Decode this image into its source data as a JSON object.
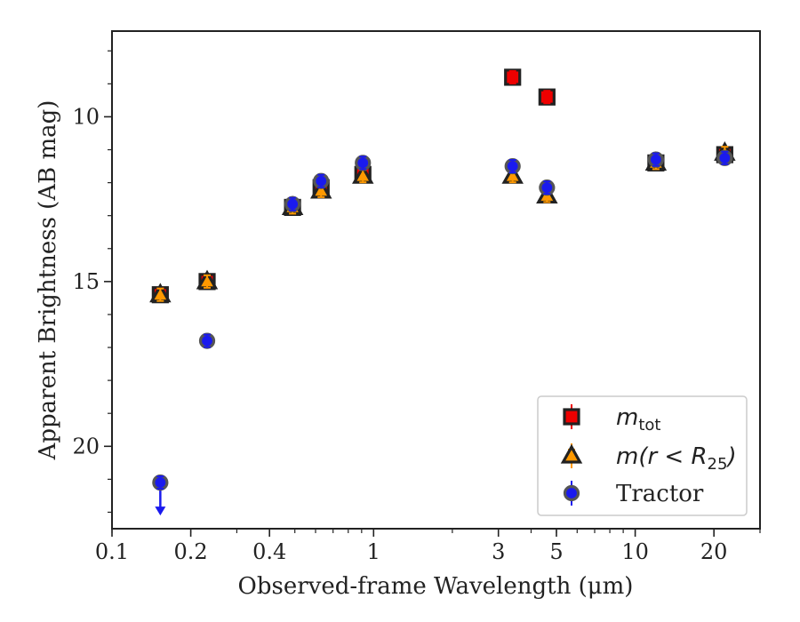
{
  "chart_data": {
    "type": "scatter",
    "title": "",
    "xlabel": "Observed-frame Wavelength (μm)",
    "ylabel": "Apparent Brightness (AB mag)",
    "xscale": "log",
    "xlim": [
      0.1,
      30
    ],
    "ylim": [
      22.5,
      7.4
    ],
    "y_inverted": true,
    "xticks": [
      {
        "value": 0.1,
        "label": "0.1"
      },
      {
        "value": 0.2,
        "label": "0.2"
      },
      {
        "value": 0.4,
        "label": "0.4"
      },
      {
        "value": 1,
        "label": "1"
      },
      {
        "value": 3,
        "label": "3"
      },
      {
        "value": 5,
        "label": "5"
      },
      {
        "value": 10,
        "label": "10"
      },
      {
        "value": 20,
        "label": "20"
      }
    ],
    "yticks": [
      {
        "value": 10,
        "label": "10"
      },
      {
        "value": 15,
        "label": "15"
      },
      {
        "value": 20,
        "label": "20"
      }
    ],
    "grid": false,
    "legend_position": "lower-right",
    "series": [
      {
        "name": "m_tot",
        "marker": "square",
        "color": "#ee0000",
        "edgecolor": "#222222",
        "points": [
          {
            "x": 0.153,
            "y": 15.4
          },
          {
            "x": 0.231,
            "y": 15.0
          },
          {
            "x": 0.49,
            "y": 12.75
          },
          {
            "x": 0.63,
            "y": 12.15
          },
          {
            "x": 0.91,
            "y": 11.75
          },
          {
            "x": 3.4,
            "y": 8.8
          },
          {
            "x": 4.6,
            "y": 9.4
          },
          {
            "x": 12.0,
            "y": 11.4
          },
          {
            "x": 22.0,
            "y": 11.15
          }
        ]
      },
      {
        "name": "m(r < R25)",
        "marker": "triangle",
        "color": "#ff9900",
        "edgecolor": "#222222",
        "points": [
          {
            "x": 0.153,
            "y": 15.4
          },
          {
            "x": 0.231,
            "y": 15.0
          },
          {
            "x": 0.49,
            "y": 12.75
          },
          {
            "x": 0.63,
            "y": 12.25
          },
          {
            "x": 0.91,
            "y": 11.8
          },
          {
            "x": 3.4,
            "y": 11.8
          },
          {
            "x": 4.6,
            "y": 12.4
          },
          {
            "x": 12.0,
            "y": 11.4
          },
          {
            "x": 22.0,
            "y": 11.1
          }
        ]
      },
      {
        "name": "Tractor",
        "marker": "circle",
        "color": "#1a1aee",
        "edgecolor": "#555555",
        "points": [
          {
            "x": 0.153,
            "y": 21.1,
            "upper_limit": true
          },
          {
            "x": 0.231,
            "y": 16.8
          },
          {
            "x": 0.49,
            "y": 12.65
          },
          {
            "x": 0.63,
            "y": 11.95
          },
          {
            "x": 0.91,
            "y": 11.4
          },
          {
            "x": 3.4,
            "y": 11.5
          },
          {
            "x": 4.6,
            "y": 12.15
          },
          {
            "x": 12.0,
            "y": 11.3
          },
          {
            "x": 22.0,
            "y": 11.25
          }
        ]
      }
    ]
  },
  "legend": {
    "items": [
      {
        "main": "m",
        "sub": "tot",
        "rest": ""
      },
      {
        "main": "m(r < R",
        "sub": "25",
        "rest": ")"
      },
      {
        "main": "Tractor",
        "sub": "",
        "rest": ""
      }
    ]
  }
}
